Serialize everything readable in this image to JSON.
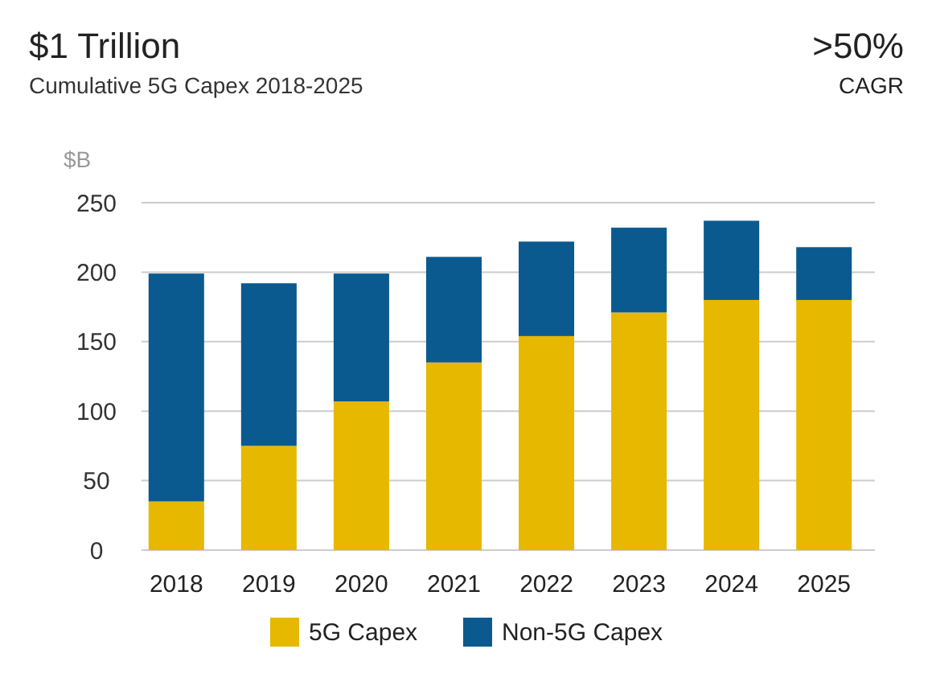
{
  "chart_data": {
    "type": "bar",
    "title": "$1 Trillion",
    "subtitle": "Cumulative 5G Capex 2018-2025",
    "annotations": [
      ">50%",
      "CAGR"
    ],
    "ylabel": "$B",
    "categories": [
      "2018",
      "2019",
      "2020",
      "2021",
      "2022",
      "2023",
      "2024",
      "2025"
    ],
    "series": [
      {
        "name": "5G Capex",
        "color": "#e6b800",
        "values": [
          35,
          75,
          107,
          135,
          154,
          171,
          180,
          180
        ]
      },
      {
        "name": "Non-5G Capex",
        "color": "#0a5a8f",
        "values": [
          164,
          117,
          92,
          76,
          68,
          61,
          57,
          38
        ]
      }
    ],
    "stacked": true,
    "ylim": [
      0,
      250
    ],
    "yticks": [
      0,
      50,
      100,
      150,
      200,
      250
    ],
    "grid": "y",
    "legend": "bottom"
  }
}
